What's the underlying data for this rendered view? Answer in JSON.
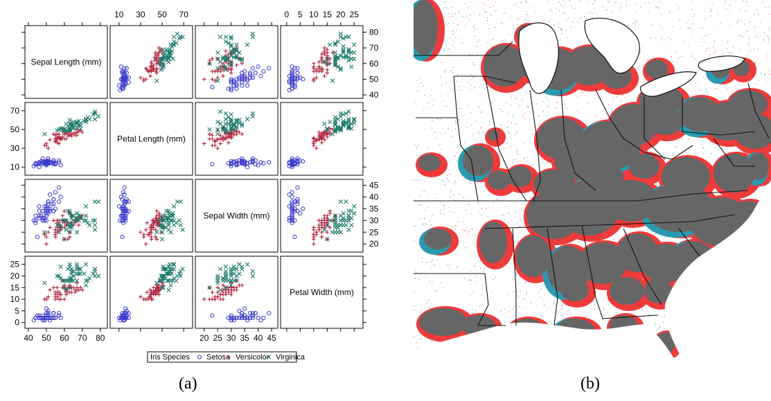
{
  "captions": {
    "left": "(a)",
    "right": "(b)"
  },
  "colors": {
    "setosa": "#3b3bcc",
    "versicolor": "#b0203a",
    "virginica": "#1f7a6e",
    "map_land": "#ffffff",
    "map_cluster": "#666666",
    "map_red": "#ee3b3b",
    "map_teal": "#2a9ab0",
    "map_border": "#111111"
  },
  "chart_data": [
    {
      "type": "scatter",
      "subtype": "scatterplot-matrix",
      "variables": [
        {
          "name": "Sepal Length (mm)",
          "range": [
            40,
            82
          ],
          "ticks": [
            40,
            50,
            60,
            70,
            80
          ]
        },
        {
          "name": "Petal Length (mm)",
          "range": [
            5,
            75
          ],
          "ticks": [
            10,
            30,
            50,
            70
          ]
        },
        {
          "name": "Sepal Width (mm)",
          "range": [
            18,
            46
          ],
          "ticks": [
            20,
            25,
            30,
            35,
            40,
            45
          ]
        },
        {
          "name": "Petal Width (mm)",
          "range": [
            -1,
            27
          ],
          "ticks": [
            0,
            5,
            10,
            15,
            20,
            25
          ]
        }
      ],
      "legend": {
        "title": "Iris Species",
        "placement": "bottom",
        "entries": [
          {
            "name": "Setosa",
            "marker": "circle"
          },
          {
            "name": "Versicolor",
            "marker": "plus"
          },
          {
            "name": "Virginica",
            "marker": "cross"
          }
        ]
      },
      "series": [
        {
          "name": "Setosa",
          "marker": "circle",
          "points": [
            [
              51,
              14,
              35,
              2
            ],
            [
              49,
              14,
              30,
              2
            ],
            [
              47,
              13,
              32,
              2
            ],
            [
              46,
              15,
              31,
              2
            ],
            [
              50,
              14,
              36,
              2
            ],
            [
              54,
              17,
              39,
              4
            ],
            [
              46,
              14,
              34,
              3
            ],
            [
              50,
              15,
              34,
              2
            ],
            [
              44,
              14,
              29,
              2
            ],
            [
              49,
              15,
              31,
              1
            ],
            [
              54,
              15,
              37,
              2
            ],
            [
              48,
              16,
              34,
              2
            ],
            [
              48,
              14,
              30,
              1
            ],
            [
              43,
              11,
              30,
              1
            ],
            [
              58,
              12,
              40,
              2
            ],
            [
              57,
              15,
              44,
              4
            ],
            [
              54,
              13,
              39,
              4
            ],
            [
              51,
              14,
              35,
              3
            ],
            [
              57,
              17,
              38,
              3
            ],
            [
              51,
              15,
              38,
              3
            ],
            [
              54,
              17,
              34,
              2
            ],
            [
              51,
              15,
              37,
              4
            ],
            [
              46,
              10,
              36,
              2
            ],
            [
              51,
              17,
              33,
              5
            ],
            [
              48,
              19,
              34,
              2
            ],
            [
              50,
              16,
              30,
              2
            ],
            [
              50,
              16,
              34,
              4
            ],
            [
              52,
              15,
              35,
              2
            ],
            [
              52,
              14,
              34,
              2
            ],
            [
              47,
              16,
              32,
              2
            ],
            [
              48,
              16,
              31,
              2
            ],
            [
              54,
              15,
              34,
              4
            ],
            [
              52,
              15,
              41,
              1
            ],
            [
              55,
              14,
              42,
              2
            ],
            [
              49,
              15,
              31,
              2
            ],
            [
              50,
              12,
              32,
              2
            ],
            [
              55,
              13,
              35,
              2
            ],
            [
              49,
              14,
              36,
              1
            ],
            [
              44,
              13,
              30,
              2
            ],
            [
              51,
              15,
              34,
              2
            ],
            [
              50,
              13,
              35,
              3
            ],
            [
              45,
              13,
              23,
              3
            ],
            [
              44,
              13,
              32,
              2
            ],
            [
              50,
              16,
              35,
              6
            ],
            [
              51,
              19,
              38,
              4
            ],
            [
              48,
              14,
              30,
              3
            ],
            [
              51,
              16,
              38,
              2
            ],
            [
              46,
              14,
              32,
              2
            ],
            [
              53,
              15,
              37,
              2
            ],
            [
              50,
              14,
              33,
              2
            ]
          ]
        },
        {
          "name": "Versicolor",
          "marker": "plus",
          "points": [
            [
              70,
              47,
              32,
              14
            ],
            [
              64,
              45,
              32,
              15
            ],
            [
              69,
              49,
              31,
              15
            ],
            [
              55,
              40,
              23,
              13
            ],
            [
              65,
              46,
              28,
              15
            ],
            [
              57,
              45,
              28,
              13
            ],
            [
              63,
              47,
              33,
              16
            ],
            [
              49,
              33,
              24,
              10
            ],
            [
              66,
              46,
              29,
              13
            ],
            [
              52,
              39,
              27,
              14
            ],
            [
              50,
              35,
              20,
              10
            ],
            [
              59,
              42,
              30,
              15
            ],
            [
              60,
              40,
              22,
              10
            ],
            [
              61,
              47,
              29,
              14
            ],
            [
              56,
              36,
              29,
              13
            ],
            [
              67,
              44,
              31,
              14
            ],
            [
              56,
              45,
              30,
              15
            ],
            [
              58,
              41,
              27,
              10
            ],
            [
              62,
              45,
              22,
              15
            ],
            [
              56,
              39,
              25,
              11
            ],
            [
              59,
              48,
              32,
              18
            ],
            [
              61,
              40,
              28,
              13
            ],
            [
              63,
              49,
              25,
              15
            ],
            [
              61,
              47,
              28,
              12
            ],
            [
              64,
              43,
              29,
              13
            ],
            [
              66,
              44,
              30,
              14
            ],
            [
              68,
              48,
              28,
              14
            ],
            [
              67,
              50,
              30,
              17
            ],
            [
              60,
              45,
              29,
              15
            ],
            [
              57,
              35,
              26,
              10
            ],
            [
              55,
              38,
              24,
              11
            ],
            [
              55,
              37,
              24,
              10
            ],
            [
              58,
              39,
              27,
              12
            ],
            [
              60,
              51,
              27,
              16
            ],
            [
              54,
              45,
              30,
              15
            ],
            [
              60,
              45,
              34,
              16
            ],
            [
              67,
              47,
              31,
              15
            ],
            [
              63,
              44,
              23,
              13
            ],
            [
              56,
              41,
              30,
              13
            ],
            [
              55,
              40,
              25,
              13
            ],
            [
              55,
              44,
              26,
              12
            ],
            [
              61,
              46,
              30,
              14
            ],
            [
              58,
              40,
              26,
              12
            ],
            [
              50,
              33,
              23,
              10
            ],
            [
              56,
              42,
              27,
              13
            ],
            [
              57,
              42,
              30,
              12
            ],
            [
              57,
              42,
              29,
              13
            ],
            [
              62,
              43,
              29,
              13
            ],
            [
              51,
              30,
              25,
              11
            ],
            [
              57,
              41,
              28,
              13
            ]
          ]
        },
        {
          "name": "Virginica",
          "marker": "cross",
          "points": [
            [
              63,
              60,
              33,
              25
            ],
            [
              58,
              51,
              27,
              19
            ],
            [
              71,
              59,
              30,
              21
            ],
            [
              63,
              56,
              29,
              18
            ],
            [
              65,
              58,
              30,
              22
            ],
            [
              76,
              66,
              30,
              21
            ],
            [
              49,
              45,
              25,
              17
            ],
            [
              73,
              63,
              29,
              18
            ],
            [
              67,
              58,
              25,
              18
            ],
            [
              72,
              61,
              36,
              25
            ],
            [
              65,
              51,
              32,
              20
            ],
            [
              64,
              53,
              27,
              19
            ],
            [
              68,
              55,
              30,
              21
            ],
            [
              57,
              50,
              25,
              20
            ],
            [
              58,
              51,
              28,
              24
            ],
            [
              64,
              53,
              32,
              23
            ],
            [
              65,
              55,
              30,
              18
            ],
            [
              77,
              67,
              38,
              22
            ],
            [
              77,
              69,
              26,
              23
            ],
            [
              60,
              50,
              22,
              15
            ],
            [
              69,
              57,
              32,
              23
            ],
            [
              56,
              49,
              28,
              20
            ],
            [
              77,
              67,
              28,
              20
            ],
            [
              63,
              49,
              27,
              18
            ],
            [
              67,
              57,
              33,
              21
            ],
            [
              72,
              60,
              32,
              18
            ],
            [
              62,
              48,
              28,
              18
            ],
            [
              61,
              49,
              30,
              18
            ],
            [
              64,
              56,
              28,
              21
            ],
            [
              72,
              58,
              30,
              16
            ],
            [
              74,
              61,
              28,
              19
            ],
            [
              79,
              64,
              38,
              20
            ],
            [
              64,
              56,
              28,
              22
            ],
            [
              63,
              51,
              28,
              15
            ],
            [
              61,
              56,
              26,
              14
            ],
            [
              77,
              61,
              30,
              23
            ],
            [
              63,
              56,
              34,
              24
            ],
            [
              64,
              55,
              31,
              18
            ],
            [
              60,
              48,
              30,
              18
            ],
            [
              69,
              54,
              31,
              21
            ],
            [
              67,
              56,
              31,
              24
            ],
            [
              69,
              51,
              31,
              23
            ],
            [
              58,
              51,
              27,
              19
            ],
            [
              68,
              59,
              32,
              23
            ],
            [
              67,
              57,
              33,
              25
            ],
            [
              67,
              52,
              30,
              23
            ],
            [
              63,
              50,
              25,
              19
            ],
            [
              65,
              52,
              30,
              20
            ],
            [
              62,
              54,
              34,
              23
            ],
            [
              59,
              51,
              30,
              18
            ]
          ]
        }
      ]
    },
    {
      "type": "map",
      "description_visible": "choropleth-style cluster map of the eastern United States",
      "layers": [
        "grey clusters",
        "red halos",
        "teal halos",
        "scattered point dots",
        "state borders"
      ]
    }
  ]
}
